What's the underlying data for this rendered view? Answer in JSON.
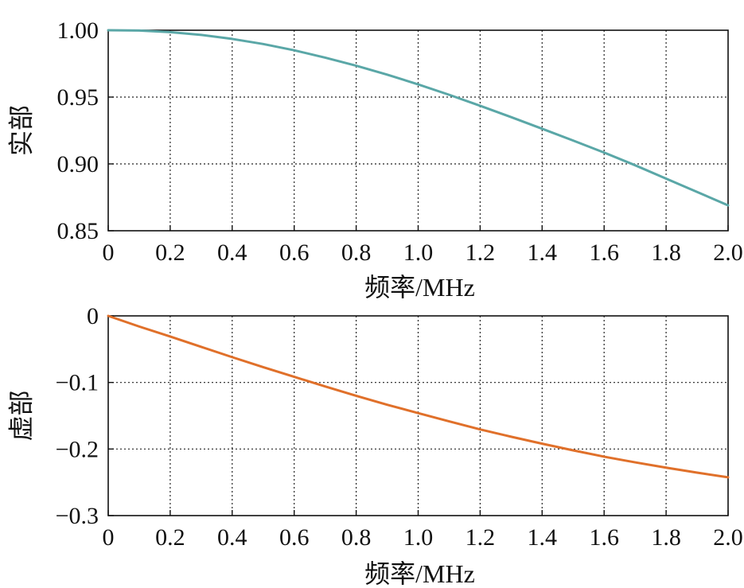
{
  "chart_data": [
    {
      "type": "line",
      "id": "real",
      "title": "",
      "xlabel": "频率/MHz",
      "ylabel": "实部",
      "xlim": [
        0,
        2.0
      ],
      "ylim": [
        0.85,
        1.0
      ],
      "xticks": [
        0,
        0.2,
        0.4,
        0.6,
        0.8,
        1.0,
        1.2,
        1.4,
        1.6,
        1.8,
        2.0
      ],
      "xtick_labels": [
        "0",
        "0.2",
        "0.4",
        "0.6",
        "0.8",
        "1.0",
        "1.2",
        "1.4",
        "1.6",
        "1.8",
        "2.0"
      ],
      "yticks": [
        0.85,
        0.9,
        0.95,
        1.0
      ],
      "ytick_labels": [
        "0.85",
        "0.90",
        "0.95",
        "1.00"
      ],
      "grid": true,
      "series": [
        {
          "color": "#5aa7a7",
          "x": [
            0,
            0.1,
            0.2,
            0.3,
            0.4,
            0.5,
            0.6,
            0.7,
            0.8,
            0.9,
            1.0,
            1.1,
            1.2,
            1.3,
            1.4,
            1.5,
            1.6,
            1.7,
            1.8,
            1.9,
            2.0
          ],
          "y": [
            1.0,
            0.9998,
            0.9986,
            0.9965,
            0.9935,
            0.9897,
            0.985,
            0.9795,
            0.9735,
            0.9668,
            0.9595,
            0.9517,
            0.9435,
            0.935,
            0.9263,
            0.9175,
            0.9085,
            0.899,
            0.889,
            0.879,
            0.869
          ]
        }
      ]
    },
    {
      "type": "line",
      "id": "imag",
      "title": "",
      "xlabel": "频率/MHz",
      "ylabel": "虚部",
      "xlim": [
        0,
        2.0
      ],
      "ylim": [
        -0.3,
        0
      ],
      "xticks": [
        0,
        0.2,
        0.4,
        0.6,
        0.8,
        1.0,
        1.2,
        1.4,
        1.6,
        1.8,
        2.0
      ],
      "xtick_labels": [
        "0",
        "0.2",
        "0.4",
        "0.6",
        "0.8",
        "1.0",
        "1.2",
        "1.4",
        "1.6",
        "1.8",
        "2.0"
      ],
      "yticks": [
        -0.3,
        -0.2,
        -0.1,
        0
      ],
      "ytick_labels": [
        "−0.3",
        "−0.2",
        "−0.1",
        "0"
      ],
      "grid": true,
      "series": [
        {
          "color": "#e0702a",
          "x": [
            0,
            0.1,
            0.2,
            0.3,
            0.4,
            0.5,
            0.6,
            0.7,
            0.8,
            0.9,
            1.0,
            1.1,
            1.2,
            1.3,
            1.4,
            1.5,
            1.6,
            1.7,
            1.8,
            1.9,
            2.0
          ],
          "y": [
            0,
            -0.016,
            -0.031,
            -0.0465,
            -0.062,
            -0.077,
            -0.0915,
            -0.106,
            -0.12,
            -0.1335,
            -0.146,
            -0.1585,
            -0.1705,
            -0.1815,
            -0.192,
            -0.202,
            -0.2115,
            -0.22,
            -0.228,
            -0.2355,
            -0.2425
          ]
        }
      ]
    }
  ]
}
